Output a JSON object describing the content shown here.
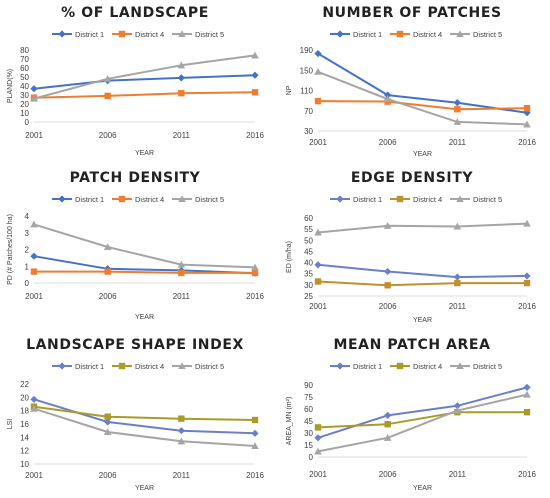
{
  "chart_data": [
    {
      "type": "line",
      "title": "% OF LANDSCAPE",
      "xlabel": "YEAR",
      "ylabel": "PLAND(%)",
      "categories": [
        "2001",
        "2006",
        "2011",
        "2016"
      ],
      "ylim": [
        0,
        80
      ],
      "yticks": [
        "0",
        "10",
        "20",
        "30",
        "40",
        "50",
        "60",
        "70",
        "80"
      ],
      "series": [
        {
          "name": "District 1",
          "values": [
            37,
            46,
            49,
            52
          ],
          "color": "#4472C4",
          "marker": "diamond"
        },
        {
          "name": "District 4",
          "values": [
            27,
            29,
            32,
            33
          ],
          "color": "#ED7D31",
          "marker": "square"
        },
        {
          "name": "District 5",
          "values": [
            26,
            48,
            63,
            74
          ],
          "color": "#A5A5A5",
          "marker": "triangle"
        }
      ]
    },
    {
      "type": "line",
      "title": "NUMBER OF PATCHES",
      "xlabel": "YEAR",
      "ylabel": "NP",
      "categories": [
        "2001",
        "2006",
        "2011",
        "2016"
      ],
      "ylim": [
        30,
        190
      ],
      "yticks": [
        "30",
        "70",
        "110",
        "150",
        "190"
      ],
      "series": [
        {
          "name": "District 1",
          "values": [
            183,
            101,
            86,
            66
          ],
          "color": "#4472C4",
          "marker": "diamond"
        },
        {
          "name": "District 4",
          "values": [
            89,
            88,
            73,
            75
          ],
          "color": "#ED7D31",
          "marker": "square"
        },
        {
          "name": "District 5",
          "values": [
            147,
            93,
            48,
            43
          ],
          "color": "#A5A5A5",
          "marker": "triangle"
        }
      ]
    },
    {
      "type": "line",
      "title": "PATCH DENSITY",
      "xlabel": "YEAR",
      "ylabel": "PD (# Patches/100 ha)",
      "categories": [
        "2001",
        "2006",
        "2011",
        "2016"
      ],
      "ylim": [
        0,
        4
      ],
      "yticks": [
        "0",
        "1",
        "2",
        "3",
        "4"
      ],
      "series": [
        {
          "name": "District 1",
          "values": [
            1.6,
            0.85,
            0.75,
            0.58
          ],
          "color": "#4472C4",
          "marker": "diamond"
        },
        {
          "name": "District 4",
          "values": [
            0.68,
            0.68,
            0.6,
            0.6
          ],
          "color": "#ED7D31",
          "marker": "square"
        },
        {
          "name": "District 5",
          "values": [
            3.5,
            2.15,
            1.1,
            0.93
          ],
          "color": "#A5A5A5",
          "marker": "triangle"
        }
      ]
    },
    {
      "type": "line",
      "title": "EDGE DENSITY",
      "xlabel": "YEAR",
      "ylabel": "ED (m/ha)",
      "categories": [
        "2001",
        "2006",
        "2011",
        "2016"
      ],
      "ylim": [
        25,
        60
      ],
      "yticks": [
        "25",
        "30",
        "35",
        "40",
        "45",
        "50",
        "55",
        "60"
      ],
      "series": [
        {
          "name": "District 1",
          "values": [
            39,
            36,
            33.5,
            34
          ],
          "color": "#6A7FC8",
          "marker": "diamond"
        },
        {
          "name": "District 4",
          "values": [
            31.5,
            29.8,
            30.8,
            30.8
          ],
          "color": "#C0902F",
          "marker": "square"
        },
        {
          "name": "District 5",
          "values": [
            53.5,
            56.5,
            56.2,
            57.5
          ],
          "color": "#A5A5A5",
          "marker": "triangle"
        }
      ]
    },
    {
      "type": "line",
      "title": "LANDSCAPE SHAPE INDEX",
      "xlabel": "YEAR",
      "ylabel": "LSI",
      "categories": [
        "2001",
        "2006",
        "2011",
        "2016"
      ],
      "ylim": [
        10,
        22
      ],
      "yticks": [
        "10",
        "12",
        "14",
        "16",
        "18",
        "20",
        "22"
      ],
      "series": [
        {
          "name": "District 1",
          "values": [
            19.7,
            16.3,
            15.0,
            14.6
          ],
          "color": "#6A7FC8",
          "marker": "diamond"
        },
        {
          "name": "District 4",
          "values": [
            18.6,
            17.1,
            16.8,
            16.6
          ],
          "color": "#A89B2A",
          "marker": "square"
        },
        {
          "name": "District 5",
          "values": [
            18.3,
            14.8,
            13.4,
            12.7
          ],
          "color": "#A5A5A5",
          "marker": "triangle"
        }
      ]
    },
    {
      "type": "line",
      "title": "MEAN PATCH AREA",
      "xlabel": "YEAR",
      "ylabel": "AREA_MN (m²)",
      "categories": [
        "2001",
        "2006",
        "2011",
        "2016"
      ],
      "ylim": [
        0,
        90
      ],
      "yticks": [
        "0",
        "15",
        "30",
        "45",
        "60",
        "75",
        "90"
      ],
      "series": [
        {
          "name": "District 1",
          "values": [
            24,
            52,
            64,
            87
          ],
          "color": "#6A7FC8",
          "marker": "diamond"
        },
        {
          "name": "District 4",
          "values": [
            37,
            41,
            56,
            56
          ],
          "color": "#A89B2A",
          "marker": "square"
        },
        {
          "name": "District 5",
          "values": [
            7,
            24,
            58,
            78
          ],
          "color": "#A5A5A5",
          "marker": "triangle"
        }
      ]
    }
  ]
}
